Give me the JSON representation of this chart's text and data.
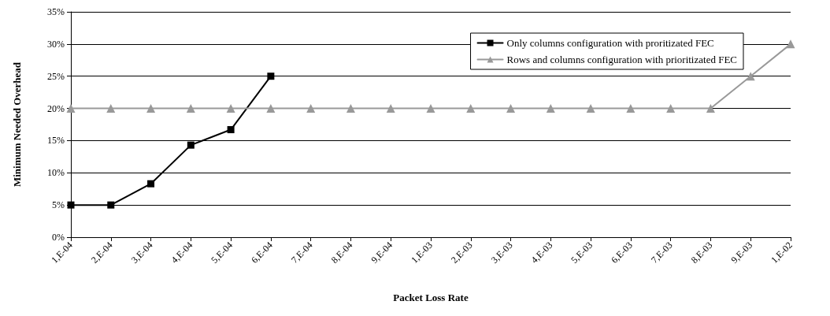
{
  "chart_data": {
    "type": "line",
    "xlabel": "Packet Loss Rate",
    "ylabel": "Minimum Needed Overhead",
    "categories": [
      "1,E-04",
      "2,E-04",
      "3,E-04",
      "4,E-04",
      "5,E-04",
      "6,E-04",
      "7,E-04",
      "8,E-04",
      "9,E-04",
      "1,E-03",
      "2,E-03",
      "3,E-03",
      "4,E-03",
      "5,E-03",
      "6,E-03",
      "7,E-03",
      "8,E-03",
      "9,E-03",
      "1,E-02"
    ],
    "series": [
      {
        "name": "Only columns configuration with proritizated FEC",
        "color": "#000000",
        "marker": "square",
        "values": [
          5,
          5,
          8.3,
          14.3,
          16.7,
          25,
          null,
          null,
          null,
          null,
          null,
          null,
          null,
          null,
          null,
          null,
          null,
          null,
          null
        ]
      },
      {
        "name": "Rows and columns configuration with prioritizated FEC",
        "color": "#999999",
        "marker": "triangle",
        "values": [
          20,
          20,
          20,
          20,
          20,
          20,
          20,
          20,
          20,
          20,
          20,
          20,
          20,
          20,
          20,
          20,
          20,
          25,
          30
        ]
      }
    ],
    "ylim": [
      0,
      35
    ],
    "yticks": [
      {
        "value": 0,
        "label": "0%"
      },
      {
        "value": 5,
        "label": "5%"
      },
      {
        "value": 10,
        "label": "10%"
      },
      {
        "value": 15,
        "label": "15%"
      },
      {
        "value": 20,
        "label": "20%"
      },
      {
        "value": 25,
        "label": "25%"
      },
      {
        "value": 30,
        "label": "30%"
      },
      {
        "value": 35,
        "label": "35%"
      }
    ],
    "grid": "y",
    "legend": "top right",
    "line_style": "solid"
  }
}
